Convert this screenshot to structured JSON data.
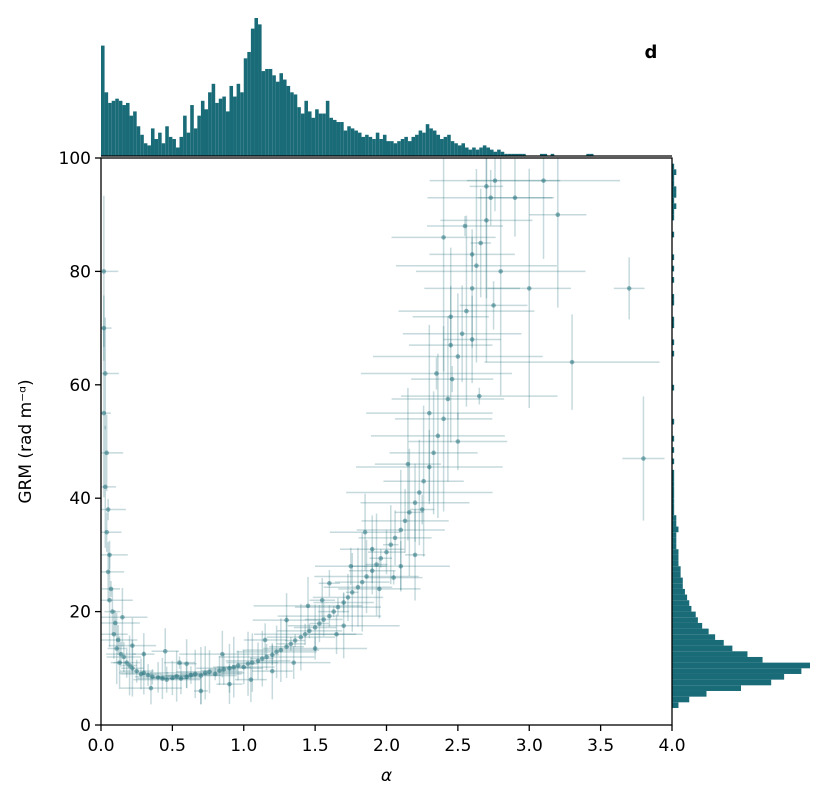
{
  "chart_data": {
    "type": "scatter",
    "panel_label": "d",
    "xlabel": "α",
    "ylabel": "GRM (rad m⁻ᵅ)",
    "xlim": [
      0.0,
      4.0
    ],
    "ylim": [
      0,
      100
    ],
    "x_ticks": [
      "0.0",
      "0.5",
      "1.0",
      "1.5",
      "2.0",
      "2.5",
      "3.0",
      "3.5",
      "4.0"
    ],
    "y_ticks": [
      "0",
      "20",
      "40",
      "60",
      "80",
      "100"
    ],
    "grid": false,
    "color": "#1a6b78",
    "error_bars": true,
    "marginal_histograms": {
      "top": {
        "bin_width": 0.025,
        "counts": [
          52,
          30,
          25,
          26,
          27,
          26,
          24,
          25,
          19,
          21,
          14,
          10,
          6,
          5,
          13,
          8,
          11,
          6,
          14,
          9,
          8,
          4,
          9,
          19,
          11,
          24,
          13,
          19,
          26,
          22,
          30,
          34,
          25,
          27,
          28,
          21,
          33,
          28,
          34,
          30,
          46,
          49,
          60,
          65,
          62,
          40,
          41,
          41,
          38,
          35,
          39,
          36,
          33,
          30,
          29,
          23,
          20,
          26,
          21,
          18,
          22,
          20,
          20,
          26,
          18,
          17,
          16,
          16,
          12,
          14,
          13,
          12,
          11,
          9,
          10,
          9,
          8,
          11,
          8,
          10,
          7,
          7,
          6,
          7,
          8,
          9,
          7,
          9,
          10,
          12,
          11,
          15,
          13,
          12,
          10,
          8,
          9,
          10,
          7,
          6,
          5,
          6,
          4,
          3,
          4,
          3,
          4,
          5,
          4,
          3,
          2,
          3,
          2,
          1,
          1,
          1,
          1,
          1,
          1,
          0,
          0,
          0,
          0,
          1,
          1,
          0,
          1,
          0,
          0,
          0,
          0,
          0,
          0,
          0,
          0,
          0,
          1,
          1,
          0,
          0,
          0,
          0,
          0,
          0,
          0,
          0,
          0,
          0,
          0,
          0,
          0,
          0,
          0,
          0,
          0,
          0,
          0,
          0,
          0,
          0
        ]
      },
      "right": {
        "bin_width": 1.0,
        "counts": [
          0,
          0,
          0,
          3,
          8,
          16,
          32,
          46,
          52,
          60,
          64,
          42,
          35,
          28,
          24,
          20,
          17,
          14,
          12,
          11,
          9,
          8,
          7,
          6,
          5,
          5,
          4,
          4,
          3,
          3,
          3,
          2,
          2,
          2,
          3,
          2,
          2,
          1,
          1,
          1,
          1,
          1,
          1,
          1,
          1,
          0,
          1,
          0,
          1,
          0,
          1,
          0,
          0,
          1,
          0,
          0,
          0,
          0,
          0,
          1,
          0,
          0,
          0,
          0,
          0,
          1,
          0,
          1,
          0,
          0,
          1,
          1,
          0,
          0,
          1,
          1,
          0,
          0,
          1,
          0,
          1,
          0,
          1,
          0,
          0,
          0,
          1,
          0,
          0,
          1,
          1,
          2,
          1,
          2,
          2,
          1,
          1,
          2,
          1,
          0
        ]
      }
    },
    "series": [
      {
        "points": [
          [
            0.02,
            80
          ],
          [
            0.02,
            70
          ],
          [
            0.03,
            62
          ],
          [
            0.02,
            55
          ],
          [
            0.04,
            48
          ],
          [
            0.03,
            42
          ],
          [
            0.05,
            38
          ],
          [
            0.04,
            34
          ],
          [
            0.06,
            30
          ],
          [
            0.05,
            27
          ],
          [
            0.07,
            24
          ],
          [
            0.06,
            22
          ],
          [
            0.08,
            20
          ],
          [
            0.1,
            18
          ],
          [
            0.09,
            16
          ],
          [
            0.12,
            15
          ],
          [
            0.11,
            13.5
          ],
          [
            0.14,
            12.5
          ],
          [
            0.16,
            12
          ],
          [
            0.13,
            11
          ],
          [
            0.18,
            11
          ],
          [
            0.2,
            10.5
          ],
          [
            0.22,
            10
          ],
          [
            0.25,
            9.5
          ],
          [
            0.28,
            9
          ],
          [
            0.3,
            9.2
          ],
          [
            0.33,
            8.8
          ],
          [
            0.36,
            8.5
          ],
          [
            0.4,
            8.4
          ],
          [
            0.43,
            8.2
          ],
          [
            0.46,
            8
          ],
          [
            0.5,
            8.3
          ],
          [
            0.53,
            8.6
          ],
          [
            0.56,
            8.2
          ],
          [
            0.6,
            8.5
          ],
          [
            0.63,
            8.8
          ],
          [
            0.66,
            9
          ],
          [
            0.7,
            8.7
          ],
          [
            0.73,
            9.2
          ],
          [
            0.76,
            9.4
          ],
          [
            0.8,
            9
          ],
          [
            0.83,
            9.6
          ],
          [
            0.86,
            9.8
          ],
          [
            0.9,
            10
          ],
          [
            0.93,
            10.2
          ],
          [
            0.96,
            10.5
          ],
          [
            1.0,
            10.2
          ],
          [
            1.03,
            10.8
          ],
          [
            1.06,
            11
          ],
          [
            1.1,
            11.3
          ],
          [
            1.13,
            11.7
          ],
          [
            1.16,
            12
          ],
          [
            1.2,
            12.4
          ],
          [
            1.23,
            12.9
          ],
          [
            1.26,
            13.2
          ],
          [
            1.3,
            13.8
          ],
          [
            1.33,
            14.3
          ],
          [
            1.36,
            14.9
          ],
          [
            1.4,
            15.5
          ],
          [
            1.43,
            16
          ],
          [
            1.46,
            16.6
          ],
          [
            1.5,
            17.2
          ],
          [
            1.53,
            17.9
          ],
          [
            1.56,
            18.6
          ],
          [
            1.6,
            19.2
          ],
          [
            1.63,
            20
          ],
          [
            1.66,
            20.8
          ],
          [
            1.7,
            21.6
          ],
          [
            1.73,
            22.5
          ],
          [
            1.76,
            23.4
          ],
          [
            1.8,
            24.3
          ],
          [
            1.83,
            25.2
          ],
          [
            1.86,
            26.2
          ],
          [
            1.9,
            27.2
          ],
          [
            1.93,
            28.3
          ],
          [
            1.96,
            29.4
          ],
          [
            2.0,
            30.5
          ],
          [
            2.03,
            31.8
          ],
          [
            2.06,
            33
          ],
          [
            2.1,
            34.4
          ],
          [
            2.13,
            36
          ],
          [
            2.16,
            37.5
          ],
          [
            2.2,
            39.2
          ],
          [
            2.23,
            41
          ],
          [
            2.26,
            43
          ],
          [
            2.3,
            45.5
          ],
          [
            2.33,
            48
          ],
          [
            2.36,
            51
          ],
          [
            2.4,
            54
          ],
          [
            2.43,
            57.5
          ],
          [
            2.46,
            61
          ],
          [
            2.5,
            65
          ],
          [
            2.53,
            69
          ],
          [
            2.56,
            73
          ],
          [
            2.6,
            77
          ],
          [
            2.63,
            81
          ],
          [
            2.66,
            85
          ],
          [
            2.7,
            89
          ],
          [
            2.73,
            93
          ],
          [
            2.76,
            96
          ],
          [
            0.3,
            12.5
          ],
          [
            0.55,
            11
          ],
          [
            0.35,
            6.5
          ],
          [
            0.7,
            6
          ],
          [
            0.9,
            7.2
          ],
          [
            1.05,
            8
          ],
          [
            1.2,
            9.5
          ],
          [
            1.35,
            11
          ],
          [
            1.5,
            13.5
          ],
          [
            1.65,
            16
          ],
          [
            1.45,
            21
          ],
          [
            1.6,
            25
          ],
          [
            1.75,
            28
          ],
          [
            1.9,
            31
          ],
          [
            2.05,
            26
          ],
          [
            2.2,
            30
          ],
          [
            1.85,
            34
          ],
          [
            2.35,
            62
          ],
          [
            2.45,
            72
          ],
          [
            2.55,
            88
          ],
          [
            2.7,
            95
          ],
          [
            2.65,
            58
          ],
          [
            2.5,
            50
          ],
          [
            2.9,
            93
          ],
          [
            3.1,
            96
          ],
          [
            3.2,
            90
          ],
          [
            2.8,
            80
          ],
          [
            3.0,
            77
          ],
          [
            3.3,
            64
          ],
          [
            3.7,
            77
          ],
          [
            3.8,
            47
          ],
          [
            2.4,
            86
          ],
          [
            2.6,
            68
          ],
          [
            2.75,
            74
          ],
          [
            0.15,
            19
          ],
          [
            0.22,
            14
          ],
          [
            0.45,
            13
          ],
          [
            0.6,
            10.8
          ],
          [
            0.85,
            12.5
          ],
          [
            1.15,
            15
          ],
          [
            1.3,
            18.5
          ],
          [
            1.55,
            22
          ],
          [
            1.7,
            17.5
          ],
          [
            1.95,
            24
          ],
          [
            2.1,
            28
          ],
          [
            2.25,
            38
          ],
          [
            2.15,
            46
          ],
          [
            2.3,
            55
          ],
          [
            2.45,
            67
          ],
          [
            2.6,
            83
          ]
        ]
      }
    ]
  }
}
